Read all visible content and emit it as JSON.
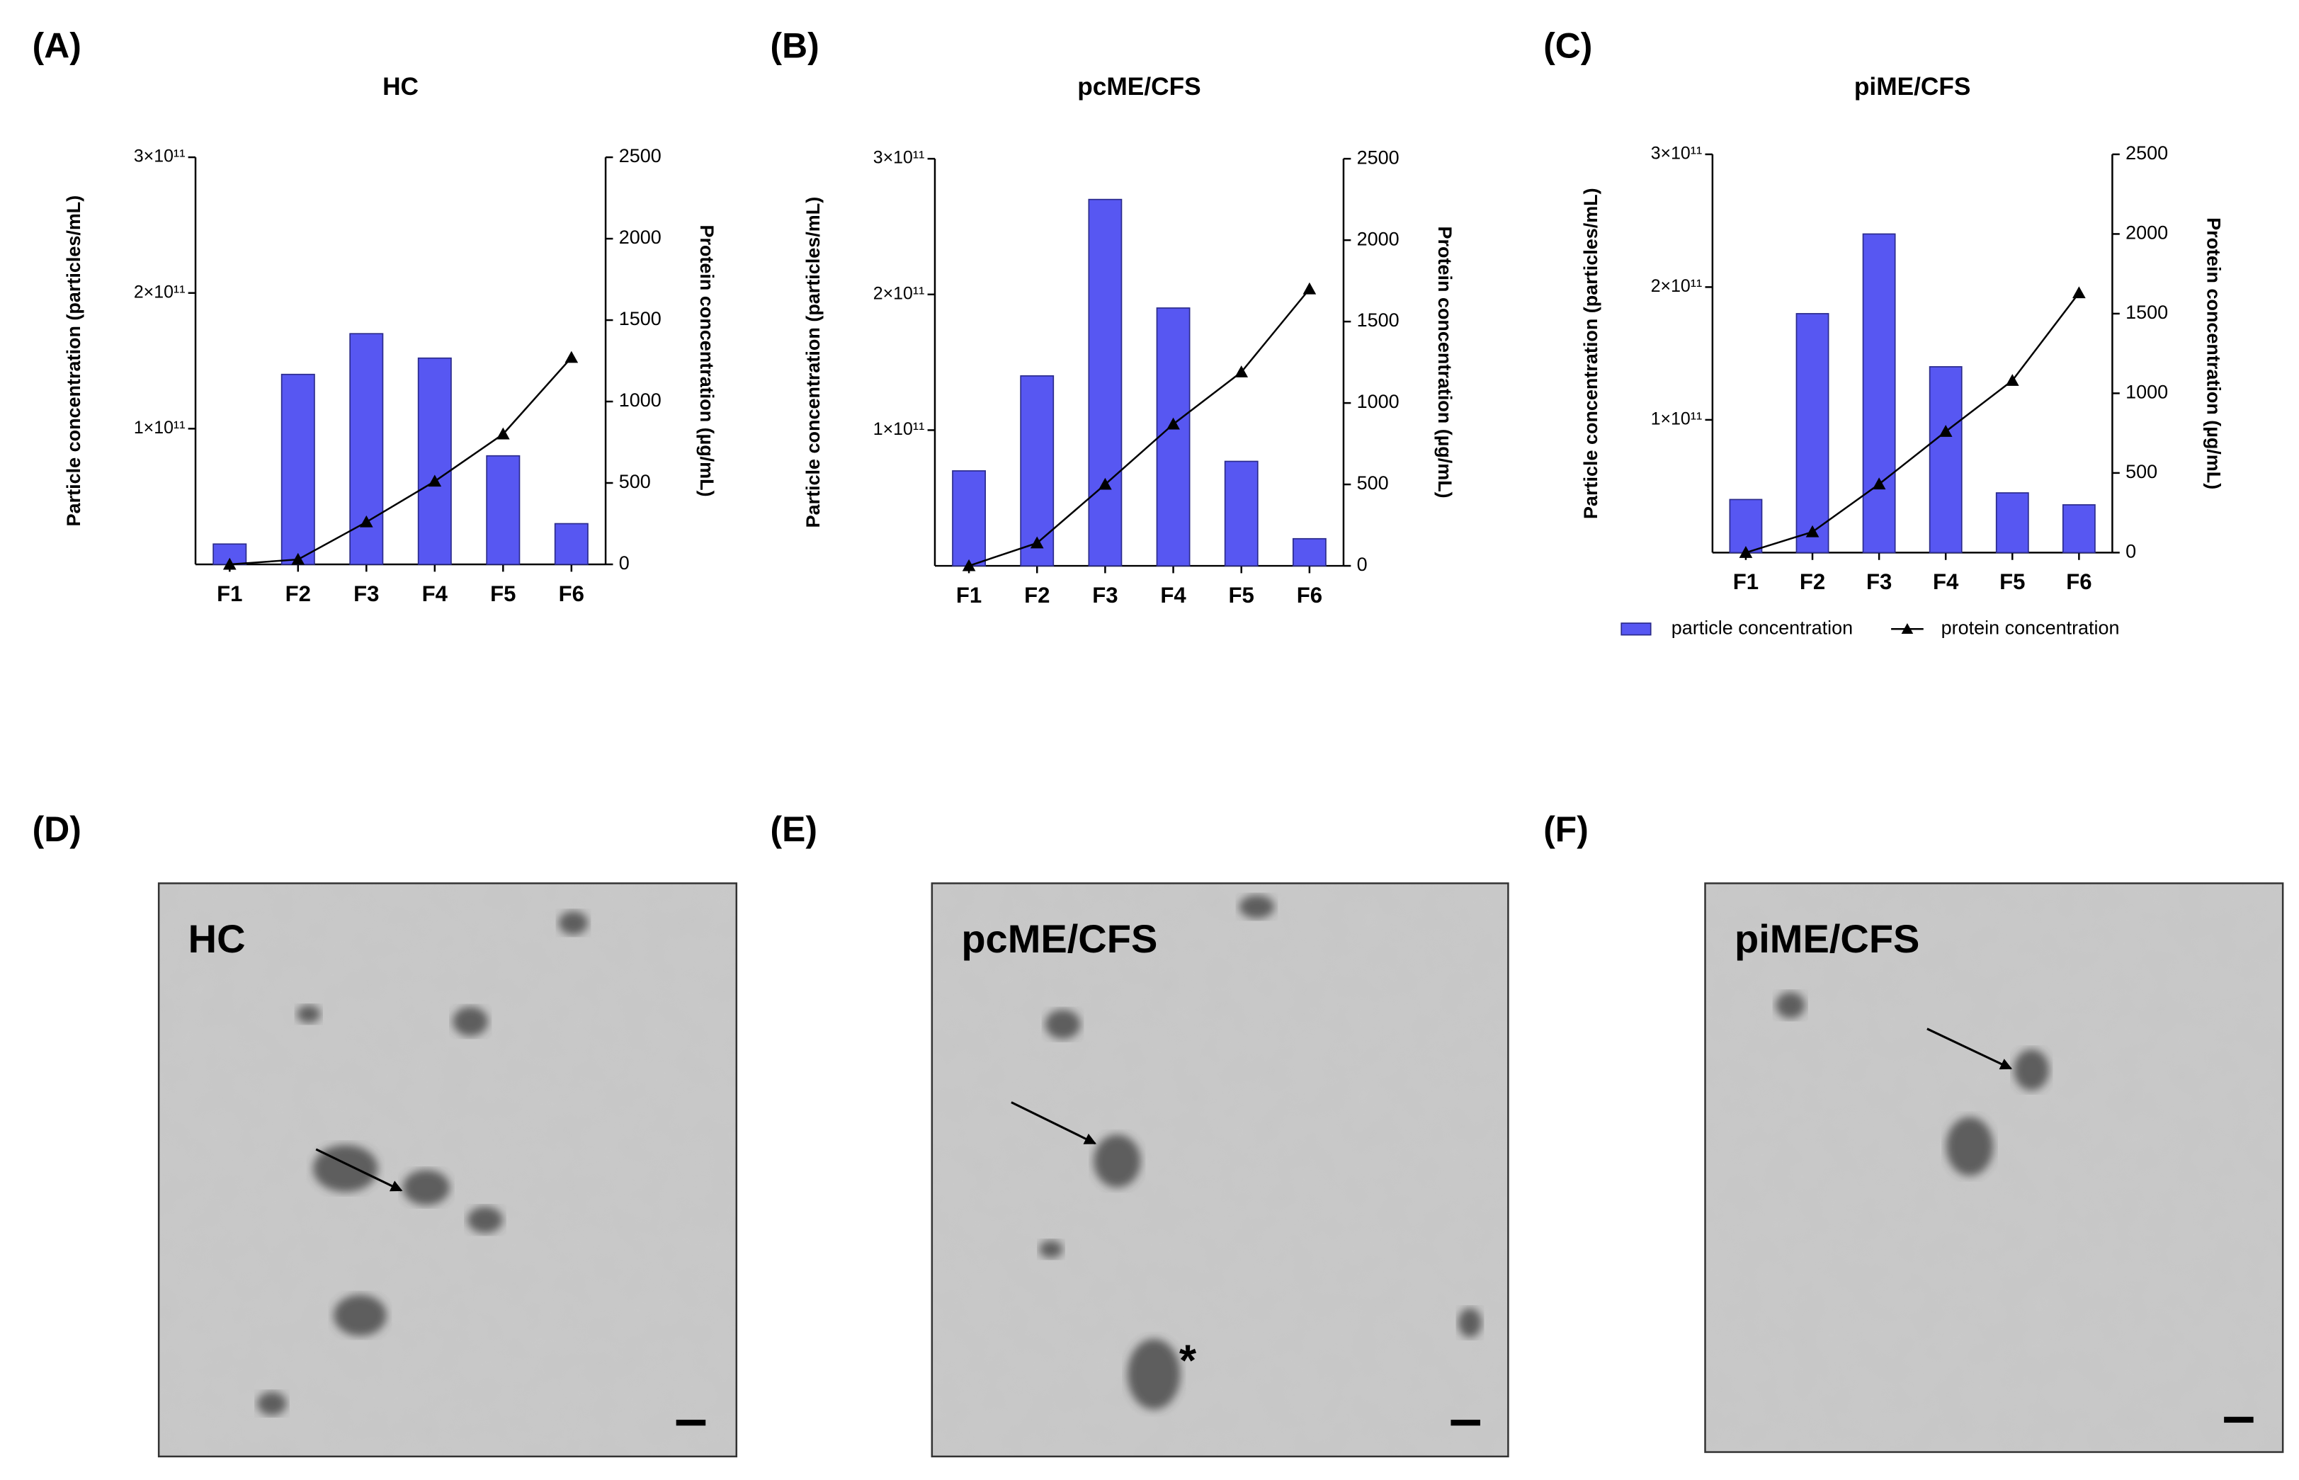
{
  "chart_data": [
    {
      "type": "bar",
      "panel_label": "(A)",
      "title": "HC",
      "ylabel": "Particle concentration (particles/mL)",
      "y2label": "Protein concentration (µg/mL)",
      "categories": [
        "F1",
        "F2",
        "F3",
        "F4",
        "F5",
        "F6"
      ],
      "series": [
        {
          "type": "bar",
          "color": "#5757f2",
          "values": [
            15000000000,
            140000000000,
            170000000000,
            152000000000,
            80000000000,
            30000000000
          ]
        },
        {
          "type": "line",
          "axis": "y2",
          "color": "#000000",
          "values": [
            0,
            30,
            260,
            510,
            800,
            1270
          ]
        }
      ],
      "ylim": [
        0,
        300000000000
      ],
      "yticks": [
        {
          "value": 100000000000,
          "label": "1×10¹¹"
        },
        {
          "value": 200000000000,
          "label": "2×10¹¹"
        },
        {
          "value": 300000000000,
          "label": "3×10¹¹"
        }
      ],
      "y2lim": [
        0,
        2500
      ],
      "y2ticks": [
        0,
        500,
        1000,
        1500,
        2000,
        2500
      ]
    },
    {
      "type": "bar",
      "panel_label": "(B)",
      "title": "pcME/CFS",
      "ylabel": "Particle concentration (particles/mL)",
      "y2label": "Protein concentration (µg/mL)",
      "categories": [
        "F1",
        "F2",
        "F3",
        "F4",
        "F5",
        "F6"
      ],
      "series": [
        {
          "type": "bar",
          "color": "#5757f2",
          "values": [
            70000000000,
            140000000000,
            270000000000,
            190000000000,
            77000000000,
            20000000000
          ]
        },
        {
          "type": "line",
          "axis": "y2",
          "color": "#000000",
          "values": [
            0,
            140,
            500,
            870,
            1190,
            1700
          ]
        }
      ],
      "ylim": [
        0,
        300000000000
      ],
      "yticks": [
        {
          "value": 100000000000,
          "label": "1×10¹¹"
        },
        {
          "value": 200000000000,
          "label": "2×10¹¹"
        },
        {
          "value": 300000000000,
          "label": "3×10¹¹"
        }
      ],
      "y2lim": [
        0,
        2500
      ],
      "y2ticks": [
        0,
        500,
        1000,
        1500,
        2000,
        2500
      ]
    },
    {
      "type": "bar",
      "panel_label": "(C)",
      "title": "piME/CFS",
      "ylabel": "Particle concentration (particles/mL)",
      "y2label": "Protein concentration (µg/mL)",
      "categories": [
        "F1",
        "F2",
        "F3",
        "F4",
        "F5",
        "F6"
      ],
      "series": [
        {
          "type": "bar",
          "name": "particle concentration",
          "color": "#5757f2",
          "values": [
            40000000000,
            180000000000,
            240000000000,
            140000000000,
            45000000000,
            36000000000
          ]
        },
        {
          "type": "line",
          "axis": "y2",
          "name": "protein concentration",
          "color": "#000000",
          "values": [
            0,
            130,
            430,
            760,
            1080,
            1630
          ]
        }
      ],
      "ylim": [
        0,
        300000000000
      ],
      "yticks": [
        {
          "value": 100000000000,
          "label": "1×10¹¹"
        },
        {
          "value": 200000000000,
          "label": "2×10¹¹"
        },
        {
          "value": 300000000000,
          "label": "3×10¹¹"
        }
      ],
      "y2lim": [
        0,
        2500
      ],
      "y2ticks": [
        0,
        500,
        1000,
        1500,
        2000,
        2500
      ],
      "legend": "bottom"
    }
  ],
  "micrographs": [
    {
      "panel_label": "(D)",
      "label": "HC"
    },
    {
      "panel_label": "(E)",
      "label": "pcME/CFS",
      "annotation": "*"
    },
    {
      "panel_label": "(F)",
      "label": "piME/CFS"
    }
  ]
}
